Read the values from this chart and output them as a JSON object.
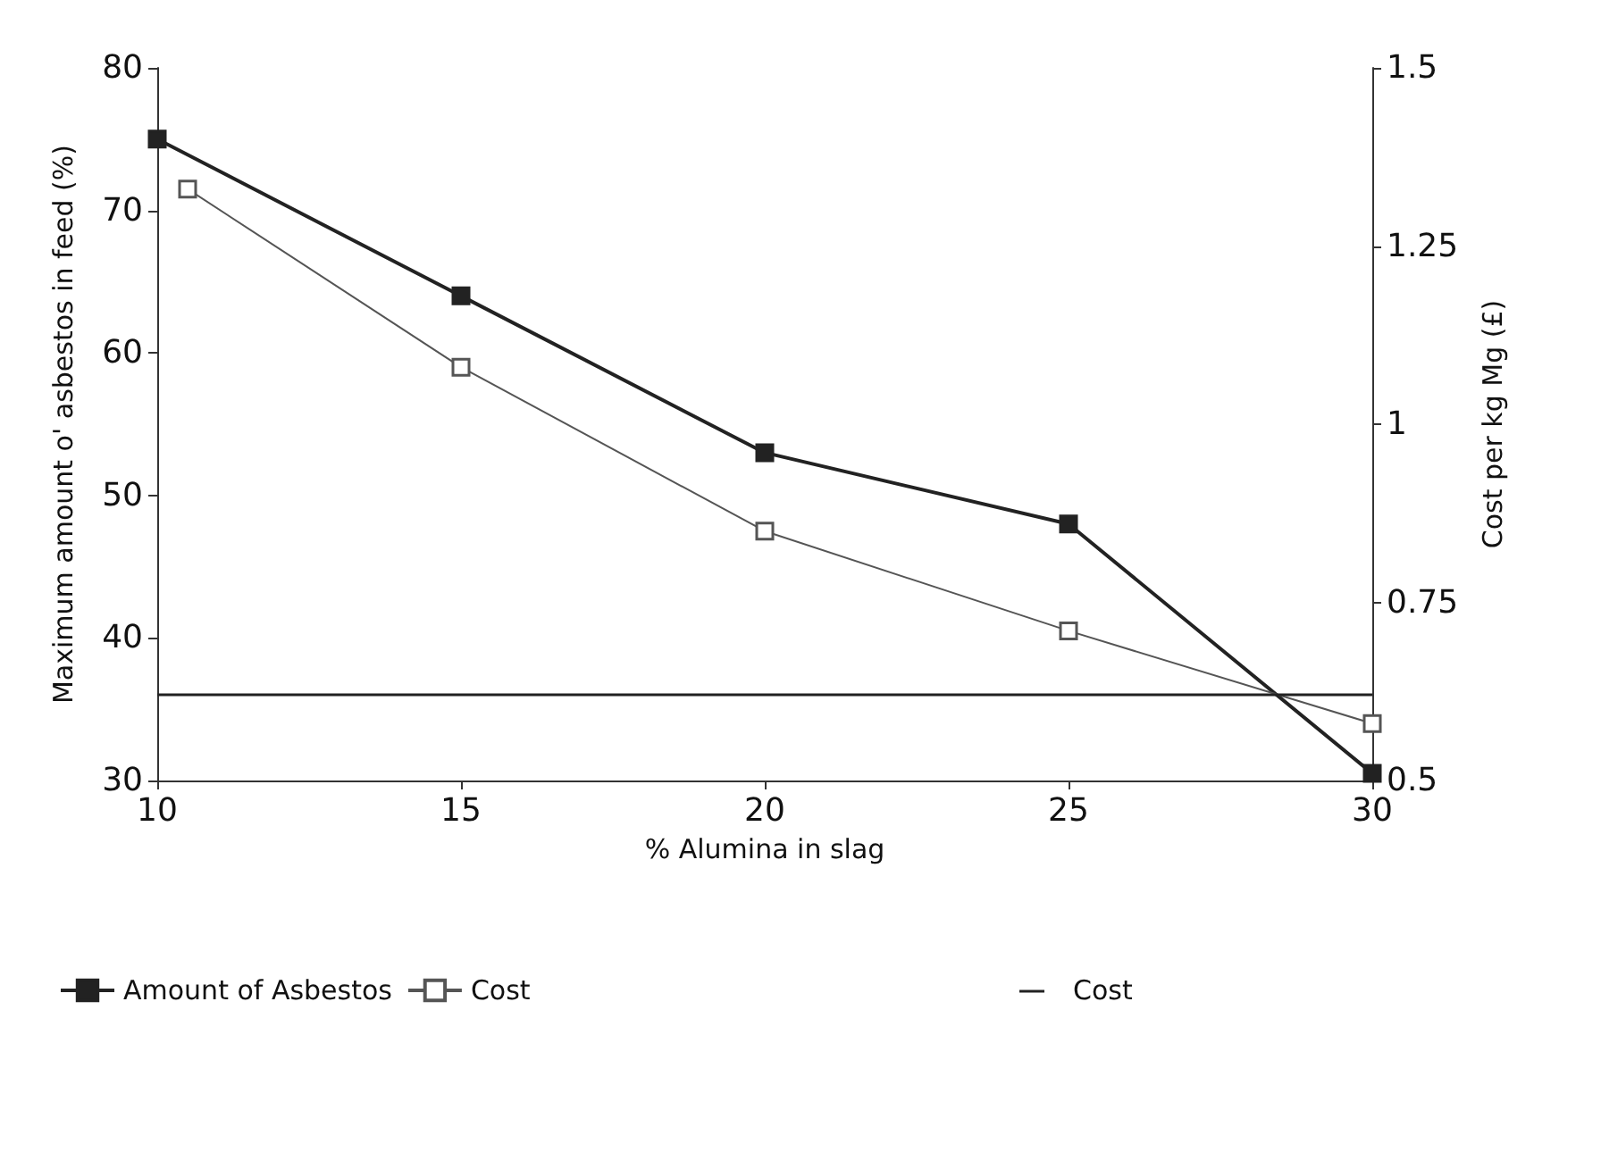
{
  "chart_data": {
    "type": "line",
    "xlabel": "% Alumina in slag",
    "ylabel": "Maximum amount o' asbestos in feed (%)",
    "y2label": "Cost per kg Mg (£)",
    "x": [
      10,
      15,
      20,
      25,
      30
    ],
    "series": [
      {
        "name": "Amount of Asbestos",
        "color": "#222222",
        "values": [
          75,
          64,
          53,
          48,
          30.5
        ],
        "marker": "square"
      },
      {
        "name": "Cost",
        "color": "#555555",
        "axis": "y2",
        "x": [
          10.5,
          15,
          20,
          25,
          30
        ],
        "values": [
          1.33,
          1.08,
          0.85,
          0.71,
          0.58
        ],
        "marker": "square"
      }
    ],
    "xlim": [
      10,
      30
    ],
    "xticks": [
      10,
      15,
      20,
      25,
      30
    ],
    "ylim": [
      30,
      80
    ],
    "yticks": [
      30,
      40,
      50,
      60,
      70,
      80
    ],
    "y2lim": [
      0.5,
      1.5
    ],
    "y2ticks": [
      0.5,
      0.75,
      1,
      1.25,
      1.5
    ],
    "ref_lines": [
      {
        "axis": "y2",
        "value": 0.62,
        "label": "Cost",
        "color": "#222222",
        "line_style": "solid"
      }
    ],
    "grid": false,
    "legend": "bottom",
    "line_style": "solid"
  }
}
